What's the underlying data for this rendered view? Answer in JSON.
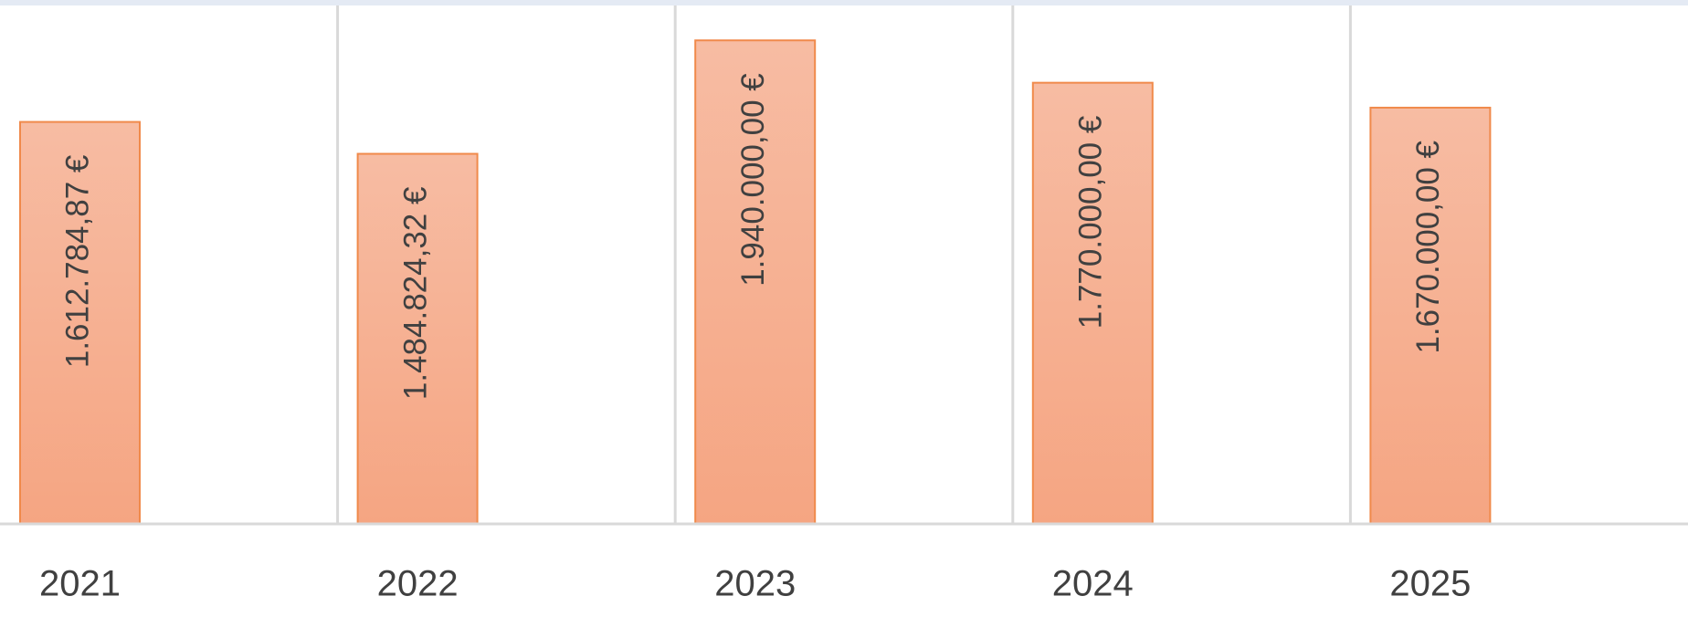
{
  "chart_data": {
    "type": "bar",
    "categories": [
      "2021",
      "2022",
      "2023",
      "2024",
      "2025"
    ],
    "values": [
      1612784.87,
      1484824.32,
      1940000,
      1770000,
      1670000
    ],
    "value_labels": [
      "1.612.784,87 €",
      "1.484.824,32 €",
      "1.940.000,00 €",
      "1.770.000,00 €",
      "1.670.000,00 €"
    ],
    "color": "#f5a784",
    "ylim": [
      0,
      2080000
    ]
  }
}
